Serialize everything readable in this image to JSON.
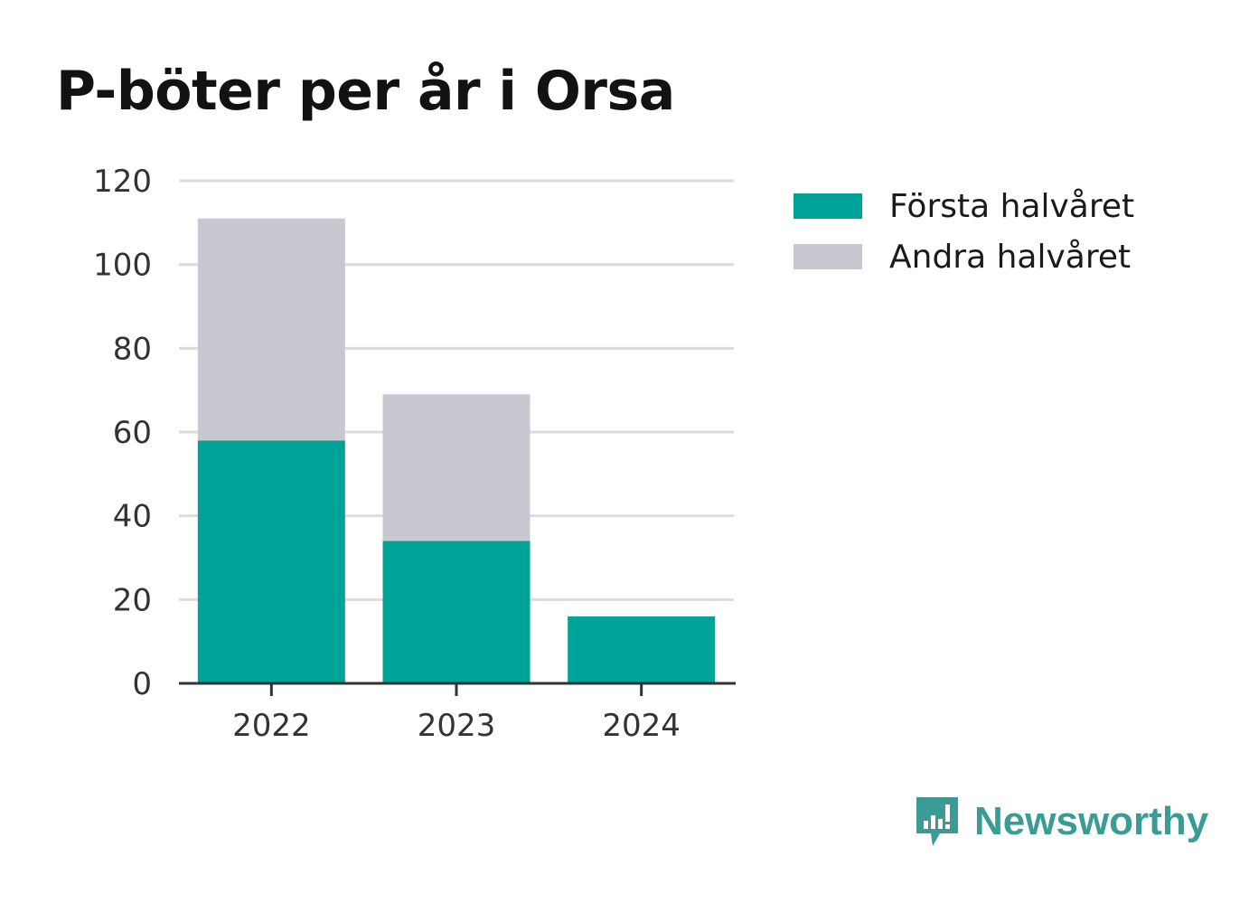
{
  "title": "P-böter per år i Orsa",
  "colors": {
    "first": "#00a398",
    "second": "#c8c8d0",
    "grid": "#dcdce0",
    "axis": "#333333",
    "brand": "#3a9c94"
  },
  "chart_data": {
    "type": "bar",
    "stacked": true,
    "categories": [
      "2022",
      "2023",
      "2024"
    ],
    "series": [
      {
        "name": "Första halvåret",
        "values": [
          58,
          34,
          16
        ]
      },
      {
        "name": "Andra halvåret",
        "values": [
          53,
          35,
          0
        ]
      }
    ],
    "yticks": [
      "0",
      "20",
      "40",
      "60",
      "80",
      "100",
      "120"
    ],
    "ylim": [
      0,
      120
    ],
    "grid": true,
    "legend": "top-right"
  },
  "brand": {
    "icon": "newsworthy-logo-icon",
    "label": "Newsworthy"
  }
}
